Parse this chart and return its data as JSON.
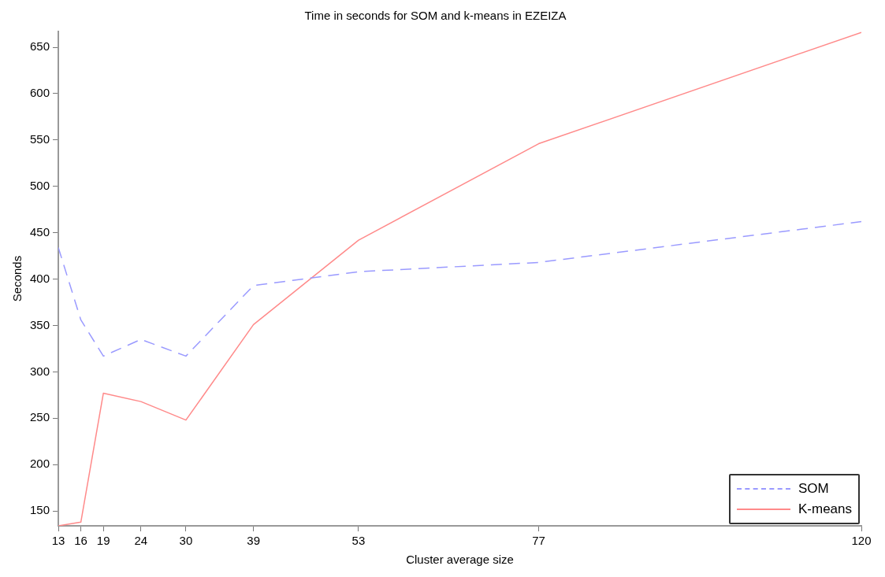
{
  "chart_data": {
    "type": "line",
    "title": "Time in seconds for SOM and k-means in EZEIZA",
    "xlabel": "Cluster average size",
    "ylabel": "Seconds",
    "x": [
      13,
      16,
      19,
      24,
      30,
      39,
      53,
      77,
      120
    ],
    "series": [
      {
        "name": "SOM",
        "color": "#9a9aff",
        "line_style": "dashed",
        "values": [
          434,
          356,
          317,
          335,
          317,
          393,
          408,
          418,
          462
        ]
      },
      {
        "name": "K-means",
        "color": "#ff8a8a",
        "line_style": "solid",
        "values": [
          134,
          138,
          277,
          268,
          248,
          351,
          442,
          546,
          666
        ]
      }
    ],
    "xlim": [
      13,
      120
    ],
    "xticks": [
      13,
      16,
      19,
      24,
      30,
      39,
      53,
      77,
      120
    ],
    "ylim": [
      134,
      667
    ],
    "yticks": [
      150,
      200,
      250,
      300,
      350,
      400,
      450,
      500,
      550,
      600,
      650
    ],
    "grid": false,
    "legend": "bottom right",
    "marker": "none"
  }
}
